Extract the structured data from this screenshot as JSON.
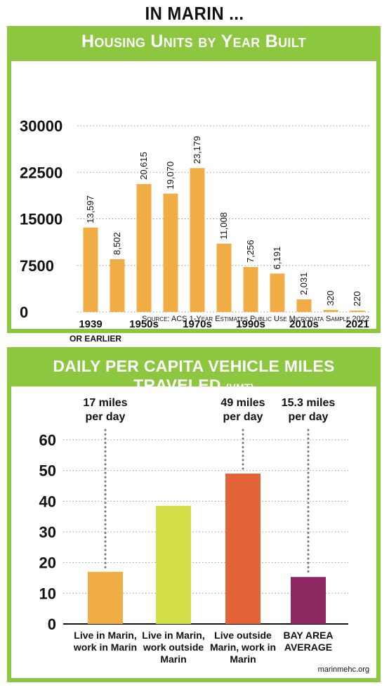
{
  "page_title": "IN MARIN ...",
  "housing": {
    "title": "Housing Units by Year Built",
    "source": "Source: ACS 1-Year Estimates Public Use Microdata Sample 2022"
  },
  "vmt": {
    "title_main": "DAILY PER CAPITA VEHICLE MILES TRAVELED",
    "title_suffix": "(VMT)",
    "credit": "marinmehc.org"
  },
  "colors": {
    "panel_green": "#8dc63f",
    "bar_orange": "#f0ad45",
    "bar_yellow_green": "#d4e04a",
    "bar_red_orange": "#e4643a",
    "bar_purple": "#8e2863"
  },
  "chart_data": [
    {
      "type": "bar",
      "title": "Housing Units by Year Built",
      "ylim": [
        0,
        30000
      ],
      "yticks": [
        "0",
        "7500",
        "15000",
        "22500",
        "30000"
      ],
      "grid": true,
      "bars": [
        {
          "value": 13597,
          "label": "13,597"
        },
        {
          "value": 8502,
          "label": "8,502"
        },
        {
          "value": 20615,
          "label": "20,615"
        },
        {
          "value": 19070,
          "label": "19,070"
        },
        {
          "value": 23179,
          "label": "23,179"
        },
        {
          "value": 11008,
          "label": "11,008"
        },
        {
          "value": 7256,
          "label": "7,256"
        },
        {
          "value": 6191,
          "label": "6,191"
        },
        {
          "value": 2031,
          "label": "2,031"
        },
        {
          "value": 320,
          "label": "320"
        },
        {
          "value": 220,
          "label": "220"
        }
      ],
      "xtick_labels": [
        {
          "bar_index": 0,
          "text": "1939",
          "sub": "OR EARLIER"
        },
        {
          "bar_index": 2,
          "text": "1950s"
        },
        {
          "bar_index": 4,
          "text": "1970s"
        },
        {
          "bar_index": 6,
          "text": "1990s"
        },
        {
          "bar_index": 8,
          "text": "2010s"
        },
        {
          "bar_index": 10,
          "text": "2021"
        }
      ]
    },
    {
      "type": "bar",
      "title": "DAILY PER CAPITA VEHICLE MILES TRAVELED (VMT)",
      "ylim": [
        0,
        60
      ],
      "yticks": [
        "0",
        "10",
        "20",
        "30",
        "40",
        "50",
        "60"
      ],
      "grid": true,
      "categories": [
        {
          "label": "Live in Marin, work in Marin",
          "value": 17,
          "callout": "17 miles per day",
          "color": "#f0ad45"
        },
        {
          "label": "Live in Marin, work outside Marin",
          "value": 38.5,
          "callout": "",
          "color": "#d4e04a"
        },
        {
          "label": "Live outside Marin, work in Marin",
          "value": 49,
          "callout": "49 miles per day",
          "color": "#e4643a"
        },
        {
          "label": "BAY AREA AVERAGE",
          "value": 15.3,
          "callout": "15.3 miles per day",
          "color": "#8e2863"
        }
      ]
    }
  ]
}
